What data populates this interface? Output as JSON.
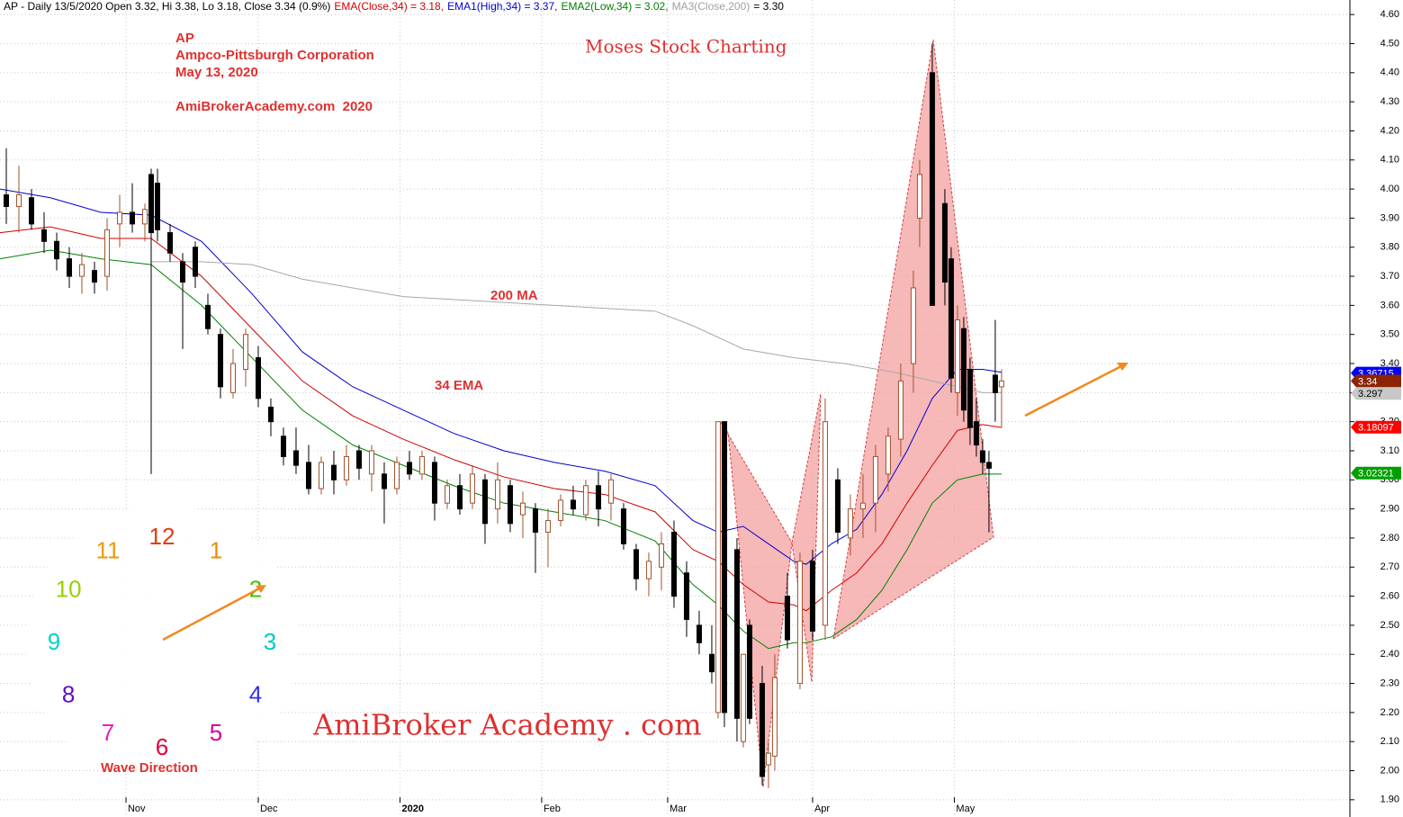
{
  "chart_data": {
    "type": "candlestick",
    "header": [
      {
        "text": "AP - Daily 13/5/2020 Open 3.32, Hi 3.38, Lo 3.18, Close 3.34 (0.9%)",
        "color": "#000000"
      },
      {
        "text": "EMA(Close,34) = 3.18,",
        "color": "#d00000"
      },
      {
        "text": "EMA1(High,34) = 3.37,",
        "color": "#0000d0"
      },
      {
        "text": "EMA2(Low,34) = 3.02,",
        "color": "#008000"
      },
      {
        "text": "MA3(Close,200)",
        "color": "#a0a0a0"
      },
      {
        "text": "= 3.30",
        "color": "#000000"
      }
    ],
    "annotations": {
      "ticker": "AP",
      "company": "Ampco-Pittsburgh Corporation",
      "date": "May 13, 2020",
      "site": "AmiBrokerAcademy.com  2020",
      "brand": "Moses Stock Charting",
      "ma_label": "200 MA",
      "ema_label": "34 EMA",
      "watermark": "AmiBroker Academy . com",
      "wave": "Wave Direction"
    },
    "clock": [
      {
        "label": "12",
        "color": "#e83a10"
      },
      {
        "label": "1",
        "color": "#f08a00"
      },
      {
        "label": "2",
        "color": "#48c000"
      },
      {
        "label": "3",
        "color": "#00c8c8"
      },
      {
        "label": "4",
        "color": "#3030f0"
      },
      {
        "label": "5",
        "color": "#d000a0"
      },
      {
        "label": "6",
        "color": "#e00040"
      },
      {
        "label": "7",
        "color": "#e020c0"
      },
      {
        "label": "8",
        "color": "#6010c0"
      },
      {
        "label": "9",
        "color": "#00d0d0"
      },
      {
        "label": "10",
        "color": "#98d000"
      },
      {
        "label": "11",
        "color": "#f09a00"
      }
    ],
    "x": [
      1,
      3,
      5,
      7,
      9,
      11,
      13,
      15,
      17,
      19,
      21,
      23,
      24,
      25,
      27,
      29,
      31,
      33,
      35,
      37,
      39,
      41,
      43,
      45,
      47,
      49,
      51,
      53,
      55,
      57,
      59,
      61,
      63,
      65,
      67,
      69,
      71,
      73,
      75,
      77,
      79,
      81,
      83,
      85,
      87,
      89,
      91,
      93,
      95,
      97,
      99,
      101,
      103,
      105,
      107,
      109,
      111,
      113,
      114,
      115,
      117,
      118,
      119,
      121,
      122,
      123,
      125,
      127,
      129,
      131,
      133,
      135,
      137,
      139,
      141,
      143,
      145,
      146,
      148,
      150,
      151,
      152,
      153,
      154,
      155,
      156,
      157,
      158,
      159
    ],
    "open": [
      3.98,
      3.94,
      3.97,
      3.86,
      3.82,
      3.76,
      3.7,
      3.72,
      3.7,
      3.88,
      3.92,
      3.88,
      4.05,
      4.02,
      3.85,
      3.75,
      3.8,
      3.6,
      3.5,
      3.3,
      3.38,
      3.42,
      3.25,
      3.15,
      3.1,
      3.06,
      2.97,
      3.05,
      3.0,
      3.1,
      3.02,
      3.02,
      2.97,
      3.06,
      3.02,
      3.06,
      2.92,
      2.98,
      2.92,
      3.0,
      2.9,
      2.98,
      2.88,
      2.9,
      2.82,
      2.86,
      2.93,
      2.88,
      2.98,
      2.92,
      2.9,
      2.76,
      2.66,
      2.7,
      2.82,
      2.68,
      2.5,
      2.4,
      2.2,
      3.2,
      2.76,
      2.1,
      2.5,
      2.3,
      2.02,
      2.05,
      2.6,
      2.3,
      2.72,
      2.5,
      3.0,
      2.8,
      2.9,
      2.92,
      3.02,
      3.14,
      3.4,
      3.9,
      4.4,
      3.95,
      3.76,
      3.3,
      3.52,
      3.38,
      3.2,
      3.1,
      3.06,
      3.36,
      3.32
    ],
    "high": [
      4.14,
      4.08,
      4.0,
      3.92,
      3.85,
      3.8,
      3.78,
      3.75,
      3.9,
      3.98,
      4.02,
      3.95,
      4.07,
      4.07,
      3.88,
      3.78,
      3.82,
      3.64,
      3.52,
      3.45,
      3.52,
      3.46,
      3.28,
      3.18,
      3.18,
      3.12,
      3.08,
      3.1,
      3.12,
      3.12,
      3.12,
      3.06,
      3.08,
      3.1,
      3.1,
      3.08,
      3.0,
      3.02,
      3.05,
      3.02,
      3.06,
      3.0,
      2.96,
      2.92,
      2.9,
      2.95,
      2.98,
      3.0,
      3.03,
      3.02,
      2.92,
      2.78,
      2.75,
      2.82,
      2.86,
      2.72,
      2.55,
      2.5,
      3.2,
      3.2,
      2.8,
      2.4,
      2.52,
      2.36,
      2.1,
      2.4,
      2.68,
      2.75,
      2.76,
      3.28,
      3.04,
      2.95,
      3.02,
      3.12,
      3.18,
      3.4,
      3.72,
      4.1,
      4.5,
      4.0,
      3.8,
      3.6,
      3.56,
      3.42,
      3.28,
      3.14,
      3.1,
      3.55,
      3.38
    ],
    "low": [
      3.88,
      3.85,
      3.86,
      3.78,
      3.72,
      3.66,
      3.64,
      3.64,
      3.65,
      3.8,
      3.85,
      3.82,
      3.02,
      3.82,
      3.75,
      3.45,
      3.66,
      3.5,
      3.28,
      3.28,
      3.32,
      3.25,
      3.15,
      3.05,
      3.02,
      2.95,
      2.95,
      2.95,
      2.98,
      3.0,
      2.96,
      2.85,
      2.95,
      3.0,
      3.0,
      2.86,
      2.9,
      2.88,
      2.9,
      2.78,
      2.85,
      2.82,
      2.8,
      2.68,
      2.7,
      2.84,
      2.88,
      2.86,
      2.84,
      2.86,
      2.76,
      2.62,
      2.6,
      2.62,
      2.56,
      2.46,
      2.4,
      2.3,
      2.18,
      2.15,
      2.1,
      2.08,
      2.16,
      1.95,
      1.94,
      2.0,
      2.42,
      2.28,
      2.45,
      2.45,
      2.78,
      2.74,
      2.8,
      2.82,
      2.96,
      3.08,
      3.3,
      3.8,
      3.6,
      3.6,
      3.3,
      3.22,
      3.2,
      3.12,
      3.08,
      3.02,
      2.82,
      3.2,
      3.18
    ],
    "close": [
      3.94,
      3.98,
      3.88,
      3.82,
      3.76,
      3.7,
      3.74,
      3.68,
      3.86,
      3.92,
      3.88,
      3.93,
      3.85,
      3.86,
      3.78,
      3.68,
      3.7,
      3.52,
      3.32,
      3.4,
      3.5,
      3.28,
      3.2,
      3.08,
      3.05,
      2.97,
      3.06,
      3.0,
      3.08,
      3.04,
      3.1,
      2.97,
      3.06,
      3.02,
      3.08,
      2.92,
      2.98,
      2.9,
      3.02,
      2.85,
      3.0,
      2.85,
      2.92,
      2.82,
      2.86,
      2.93,
      2.9,
      2.98,
      2.9,
      3.0,
      2.78,
      2.66,
      2.72,
      2.78,
      2.6,
      2.52,
      2.44,
      2.34,
      3.2,
      2.2,
      2.18,
      2.4,
      2.18,
      1.98,
      2.06,
      2.32,
      2.45,
      2.72,
      2.48,
      3.2,
      2.82,
      2.9,
      2.92,
      3.08,
      3.15,
      3.34,
      3.66,
      4.05,
      3.6,
      3.68,
      3.35,
      3.55,
      3.24,
      3.18,
      3.12,
      3.06,
      3.04,
      3.3,
      3.34
    ],
    "lines": [
      {
        "name": "EMA1(High,34)",
        "color": "#0000d0",
        "x": [
          0,
          8,
          16,
          24,
          32,
          40,
          48,
          56,
          64,
          72,
          80,
          88,
          96,
          104,
          110,
          114,
          118,
          122,
          126,
          128,
          132,
          136,
          140,
          144,
          148,
          152,
          156,
          159
        ],
        "values": [
          4.0,
          3.97,
          3.92,
          3.91,
          3.82,
          3.64,
          3.44,
          3.32,
          3.24,
          3.16,
          3.1,
          3.06,
          3.03,
          2.98,
          2.86,
          2.82,
          2.84,
          2.78,
          2.72,
          2.71,
          2.78,
          2.83,
          2.95,
          3.1,
          3.28,
          3.38,
          3.38,
          3.37
        ]
      },
      {
        "name": "EMA(Close,34)",
        "color": "#d00000",
        "x": [
          0,
          8,
          16,
          24,
          32,
          40,
          48,
          56,
          64,
          72,
          80,
          88,
          96,
          104,
          110,
          114,
          118,
          122,
          126,
          128,
          132,
          136,
          140,
          144,
          148,
          152,
          156,
          159
        ],
        "values": [
          3.85,
          3.87,
          3.83,
          3.83,
          3.7,
          3.52,
          3.34,
          3.22,
          3.14,
          3.07,
          3.01,
          2.97,
          2.95,
          2.89,
          2.76,
          2.72,
          2.64,
          2.58,
          2.57,
          2.55,
          2.62,
          2.68,
          2.78,
          2.92,
          3.05,
          3.17,
          3.19,
          3.18
        ]
      },
      {
        "name": "EMA2(Low,34)",
        "color": "#008000",
        "x": [
          0,
          8,
          16,
          24,
          32,
          40,
          48,
          56,
          64,
          72,
          80,
          88,
          96,
          104,
          110,
          114,
          118,
          122,
          126,
          128,
          132,
          136,
          140,
          144,
          148,
          152,
          156,
          159
        ],
        "values": [
          3.76,
          3.79,
          3.76,
          3.74,
          3.6,
          3.42,
          3.24,
          3.12,
          3.05,
          2.98,
          2.92,
          2.89,
          2.86,
          2.79,
          2.64,
          2.57,
          2.48,
          2.42,
          2.44,
          2.44,
          2.46,
          2.52,
          2.62,
          2.76,
          2.92,
          3.0,
          3.02,
          3.02
        ]
      },
      {
        "name": "MA3(Close,200)",
        "color": "#a8a8a8",
        "x": [
          24,
          32,
          40,
          48,
          56,
          64,
          72,
          80,
          88,
          96,
          104,
          110,
          118,
          126,
          134,
          142,
          150,
          156,
          159
        ],
        "values": [
          3.75,
          3.75,
          3.74,
          3.69,
          3.66,
          3.63,
          3.62,
          3.61,
          3.6,
          3.59,
          3.58,
          3.53,
          3.45,
          3.42,
          3.4,
          3.37,
          3.33,
          3.3,
          3.3
        ]
      }
    ],
    "price_labels": [
      {
        "value": 3.36715,
        "color": "#0000ff",
        "text_color": "#ffffff"
      },
      {
        "value": 3.34,
        "color": "#8b2500",
        "text_color": "#ffffff"
      },
      {
        "value": 3.297,
        "color": "#c8c8c8",
        "text_color": "#000000"
      },
      {
        "value": 3.18097,
        "color": "#ff0000",
        "text_color": "#ffffff"
      },
      {
        "value": 3.02321,
        "color": "#00a000",
        "text_color": "#ffffff"
      }
    ],
    "xlim": [
      0,
      214.3
    ],
    "xticks": [
      {
        "value": 20,
        "label": "Nov"
      },
      {
        "value": 41,
        "label": "Dec"
      },
      {
        "value": 63.5,
        "label": "2020"
      },
      {
        "value": 86,
        "label": "Feb"
      },
      {
        "value": 106,
        "label": "Mar"
      },
      {
        "value": 129,
        "label": "Apr"
      },
      {
        "value": 151.5,
        "label": "May"
      }
    ],
    "ylim": [
      1.85,
      4.65
    ],
    "yticks": [
      {
        "value": 1.9,
        "label": "1.90"
      },
      {
        "value": 2.0,
        "label": "2.00"
      },
      {
        "value": 2.1,
        "label": "2.10"
      },
      {
        "value": 2.2,
        "label": "2.20"
      },
      {
        "value": 2.3,
        "label": "2.30"
      },
      {
        "value": 2.4,
        "label": "2.40"
      },
      {
        "value": 2.5,
        "label": "2.50"
      },
      {
        "value": 2.6,
        "label": "2.60"
      },
      {
        "value": 2.7,
        "label": "2.70"
      },
      {
        "value": 2.8,
        "label": "2.80"
      },
      {
        "value": 2.9,
        "label": "2.90"
      },
      {
        "value": 3.0,
        "label": "3.00"
      },
      {
        "value": 3.1,
        "label": "3.10"
      },
      {
        "value": 3.2,
        "label": "3.20"
      },
      {
        "value": 3.3,
        "label": "3.30"
      },
      {
        "value": 3.4,
        "label": "3.40"
      },
      {
        "value": 3.5,
        "label": "3.50"
      },
      {
        "value": 3.6,
        "label": "3.60"
      },
      {
        "value": 3.7,
        "label": "3.70"
      },
      {
        "value": 3.8,
        "label": "3.80"
      },
      {
        "value": 3.9,
        "label": "3.90"
      },
      {
        "value": 4.0,
        "label": "4.00"
      },
      {
        "value": 4.1,
        "label": "4.10"
      },
      {
        "value": 4.2,
        "label": "4.20"
      },
      {
        "value": 4.3,
        "label": "4.30"
      },
      {
        "value": 4.4,
        "label": "4.40"
      },
      {
        "value": 4.5,
        "label": "4.50"
      },
      {
        "value": 4.6,
        "label": "4.60"
      }
    ],
    "grid": true,
    "up_color": "#a0522d",
    "down_color": "#000000"
  }
}
